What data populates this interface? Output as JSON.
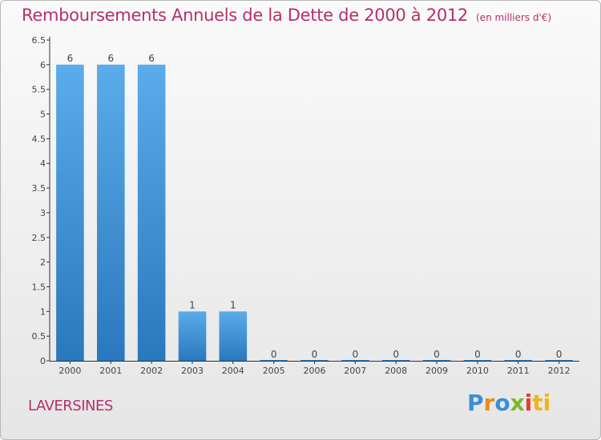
{
  "page": {
    "title": "Remboursements Annuels de la Dette de 2000 à 2012",
    "unit": "(en milliers d'€)",
    "commune": "LAVERSINES",
    "brand_letters": [
      "P",
      "r",
      "o",
      "x",
      "i",
      "ti"
    ]
  },
  "chart_data": {
    "type": "bar",
    "title": "Remboursements Annuels de la Dette de 2000 à 2012",
    "subtitle": "(en milliers d'€)",
    "xlabel": "",
    "ylabel": "",
    "categories": [
      "2000",
      "2001",
      "2002",
      "2003",
      "2004",
      "2005",
      "2006",
      "2007",
      "2008",
      "2009",
      "2010",
      "2011",
      "2012"
    ],
    "values": [
      6,
      6,
      6,
      1,
      1,
      0,
      0,
      0,
      0,
      0,
      0,
      0,
      0
    ],
    "data_labels": [
      "6",
      "6",
      "6",
      "1",
      "1",
      "0",
      "0",
      "0",
      "0",
      "0",
      "0",
      "0",
      "0"
    ],
    "ylim": [
      0,
      6.5
    ],
    "yticks": [
      "0",
      "0.5",
      "1",
      "1.5",
      "2",
      "2.5",
      "3",
      "3.5",
      "4",
      "4.5",
      "5",
      "5.5",
      "6",
      "6.5"
    ],
    "grid": false,
    "colors": {
      "bar_top": "#5aacea",
      "bar_bottom": "#2a78bd",
      "axis": "#333333",
      "text_accent": "#b5306b"
    }
  }
}
